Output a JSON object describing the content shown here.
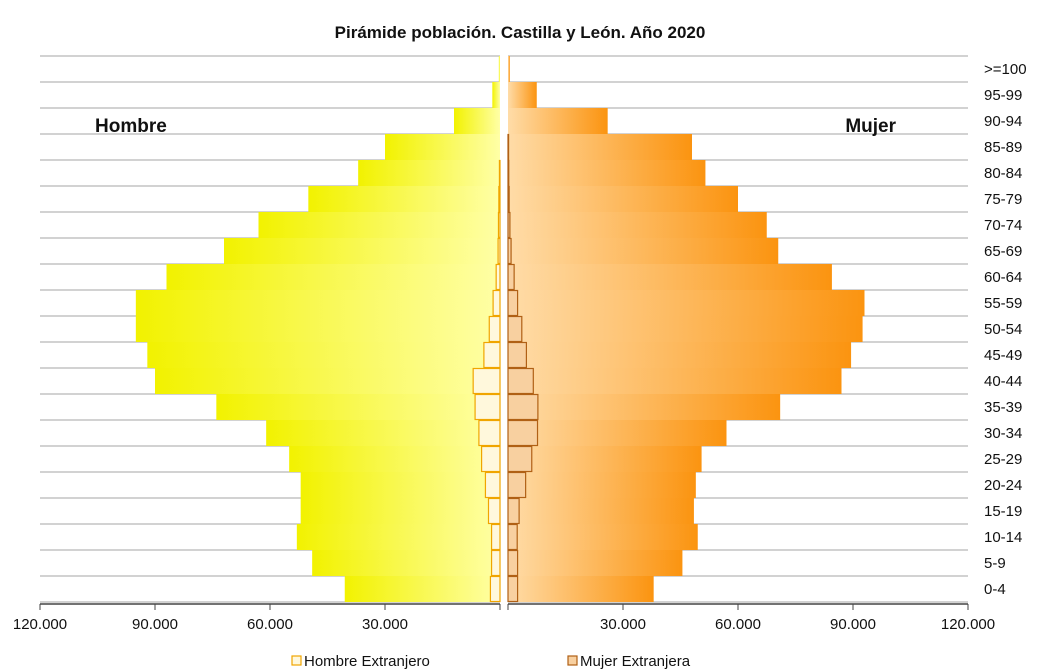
{
  "chart_data": {
    "type": "bar",
    "title": "Pirámide población. Castilla y León. Año 2020",
    "side_labels": {
      "left": "Hombre",
      "right": "Mujer"
    },
    "categories": [
      ">=100",
      "95-99",
      "90-94",
      "85-89",
      "80-84",
      "75-79",
      "70-74",
      "65-69",
      "60-64",
      "55-59",
      "50-54",
      "45-49",
      "40-44",
      "35-39",
      "30-34",
      "25-29",
      "20-24",
      "15-19",
      "10-14",
      "5-9",
      "0-4"
    ],
    "series": [
      {
        "side": "left",
        "values": [
          300,
          2000,
          12000,
          30000,
          37000,
          50000,
          63000,
          72000,
          87000,
          95000,
          95000,
          92000,
          90000,
          74000,
          61000,
          55000,
          52000,
          52000,
          53000,
          49000,
          40500
        ]
      },
      {
        "side": "right",
        "values": [
          500,
          7500,
          26000,
          48000,
          51500,
          60000,
          67500,
          70500,
          84500,
          93000,
          92500,
          89500,
          87000,
          71000,
          57000,
          50500,
          49000,
          48500,
          49500,
          45500,
          38000
        ]
      },
      {
        "name": "Hombre Extranjero",
        "side": "left",
        "values": [
          0,
          0,
          50,
          100,
          150,
          300,
          400,
          500,
          1000,
          1800,
          2800,
          4200,
          7000,
          6500,
          5500,
          4800,
          3800,
          3000,
          2200,
          2200,
          2500
        ]
      },
      {
        "name": "Mujer Extranjera",
        "side": "right",
        "values": [
          0,
          0,
          50,
          150,
          200,
          300,
          500,
          800,
          1600,
          2500,
          3600,
          4800,
          6600,
          7800,
          7700,
          6200,
          4600,
          2900,
          2400,
          2500,
          2500
        ]
      }
    ],
    "xlim": [
      0,
      120000
    ],
    "tick_values": [
      0,
      30000,
      60000,
      90000,
      120000
    ],
    "tick_labels": [
      "30.000",
      "60.000",
      "90.000",
      "120.000"
    ],
    "colors": {
      "male_inner": "#ffffa6",
      "male_outer": "#f2f200",
      "female_inner": "#ffdca8",
      "female_outer": "#fb9410",
      "male_foreign_stroke": "#f0a500",
      "male_foreign_fill": "#fff8dc",
      "female_foreign_stroke": "#b06015",
      "female_foreign_fill": "#f8d0a0",
      "grid": "#a6a6a6",
      "axis": "#444444"
    }
  },
  "legend": {
    "male_label": "Hombre Extranjero",
    "female_label": "Mujer Extranjera"
  }
}
